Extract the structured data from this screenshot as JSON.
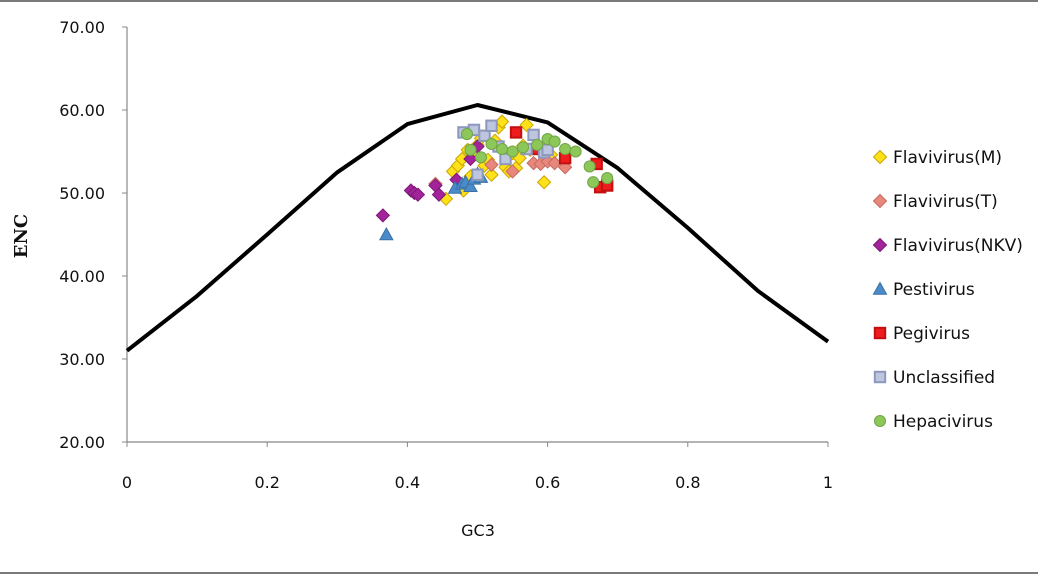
{
  "chart_data": {
    "type": "scatter",
    "xlabel": "GC3",
    "ylabel": "ENC",
    "xlim": [
      0,
      1
    ],
    "ylim": [
      20,
      70
    ],
    "x_ticks": [
      "0",
      "0.2",
      "0.4",
      "0.6",
      "0.8",
      "1"
    ],
    "y_ticks": [
      "20.00",
      "30.00",
      "40.00",
      "50.00",
      "60.00",
      "70.00"
    ],
    "grid": false,
    "legend_position": "right",
    "expected_curve": {
      "color": "#000000",
      "x": [
        0,
        0.1,
        0.2,
        0.3,
        0.4,
        0.5,
        0.6,
        0.7,
        0.8,
        0.9,
        1.0
      ],
      "y": [
        31.0,
        37.6,
        45.0,
        52.5,
        58.3,
        60.6,
        58.5,
        53.0,
        45.8,
        38.2,
        32.1
      ]
    },
    "series": [
      {
        "name": "Flavivirus(M)",
        "marker": "diamond",
        "fill": "#FFE11A",
        "stroke": "#C9A600",
        "points": [
          [
            0.455,
            49.3
          ],
          [
            0.465,
            52.6
          ],
          [
            0.472,
            53.3
          ],
          [
            0.478,
            54.1
          ],
          [
            0.48,
            50.3
          ],
          [
            0.486,
            55.2
          ],
          [
            0.49,
            52.0
          ],
          [
            0.493,
            54.7
          ],
          [
            0.5,
            55.8
          ],
          [
            0.505,
            56.6
          ],
          [
            0.51,
            53.3
          ],
          [
            0.515,
            54.0
          ],
          [
            0.52,
            52.2
          ],
          [
            0.525,
            56.3
          ],
          [
            0.53,
            57.9
          ],
          [
            0.535,
            58.6
          ],
          [
            0.54,
            53.1
          ],
          [
            0.545,
            52.6
          ],
          [
            0.55,
            54.8
          ],
          [
            0.555,
            53.0
          ],
          [
            0.56,
            54.2
          ],
          [
            0.565,
            55.7
          ],
          [
            0.57,
            58.2
          ],
          [
            0.575,
            55.2
          ],
          [
            0.595,
            51.3
          ],
          [
            0.605,
            54.6
          ]
        ]
      },
      {
        "name": "Flavivirus(T)",
        "marker": "diamond",
        "fill": "#E8877C",
        "stroke": "#C76A60",
        "points": [
          [
            0.44,
            51.1
          ],
          [
            0.52,
            53.4
          ],
          [
            0.55,
            52.6
          ],
          [
            0.58,
            53.6
          ],
          [
            0.59,
            53.5
          ],
          [
            0.6,
            53.8
          ],
          [
            0.61,
            53.6
          ],
          [
            0.625,
            53.1
          ]
        ]
      },
      {
        "name": "Flavivirus(NKV)",
        "marker": "diamond",
        "fill": "#A2239A",
        "stroke": "#7E1A78",
        "points": [
          [
            0.365,
            47.3
          ],
          [
            0.405,
            50.3
          ],
          [
            0.41,
            50.0
          ],
          [
            0.415,
            49.8
          ],
          [
            0.44,
            50.9
          ],
          [
            0.445,
            49.8
          ],
          [
            0.47,
            51.6
          ],
          [
            0.49,
            54.1
          ],
          [
            0.5,
            55.6
          ]
        ]
      },
      {
        "name": "Pestivirus",
        "marker": "triangle",
        "fill": "#4A8BC9",
        "stroke": "#3A70A5",
        "points": [
          [
            0.37,
            45.0
          ],
          [
            0.468,
            50.6
          ],
          [
            0.478,
            51.1
          ],
          [
            0.483,
            51.3
          ],
          [
            0.49,
            50.8
          ],
          [
            0.495,
            51.7
          ],
          [
            0.5,
            52.3
          ],
          [
            0.505,
            51.9
          ]
        ]
      },
      {
        "name": "Pegivirus",
        "marker": "square",
        "fill": "#EE1C1C",
        "stroke": "#C21010",
        "points": [
          [
            0.555,
            57.3
          ],
          [
            0.585,
            55.3
          ],
          [
            0.625,
            54.2
          ],
          [
            0.67,
            53.5
          ],
          [
            0.675,
            50.7
          ],
          [
            0.685,
            50.9
          ]
        ]
      },
      {
        "name": "Unclassified",
        "marker": "square",
        "fill": "#BDC5DF",
        "stroke": "#8E97BC",
        "points": [
          [
            0.48,
            57.3
          ],
          [
            0.495,
            57.6
          ],
          [
            0.5,
            52.2
          ],
          [
            0.51,
            56.9
          ],
          [
            0.52,
            58.1
          ],
          [
            0.53,
            55.6
          ],
          [
            0.54,
            54.1
          ],
          [
            0.57,
            55.3
          ],
          [
            0.58,
            57.0
          ],
          [
            0.595,
            54.9
          ],
          [
            0.6,
            55.2
          ]
        ]
      },
      {
        "name": "Hepacivirus",
        "marker": "circle",
        "fill": "#8DC75A",
        "stroke": "#6FA647",
        "points": [
          [
            0.485,
            57.1
          ],
          [
            0.49,
            55.2
          ],
          [
            0.505,
            54.3
          ],
          [
            0.52,
            55.9
          ],
          [
            0.535,
            55.3
          ],
          [
            0.55,
            55.0
          ],
          [
            0.565,
            55.5
          ],
          [
            0.585,
            55.8
          ],
          [
            0.6,
            56.5
          ],
          [
            0.61,
            56.2
          ],
          [
            0.625,
            55.3
          ],
          [
            0.64,
            55.0
          ],
          [
            0.66,
            53.2
          ],
          [
            0.665,
            51.3
          ],
          [
            0.685,
            51.8
          ]
        ]
      }
    ]
  }
}
